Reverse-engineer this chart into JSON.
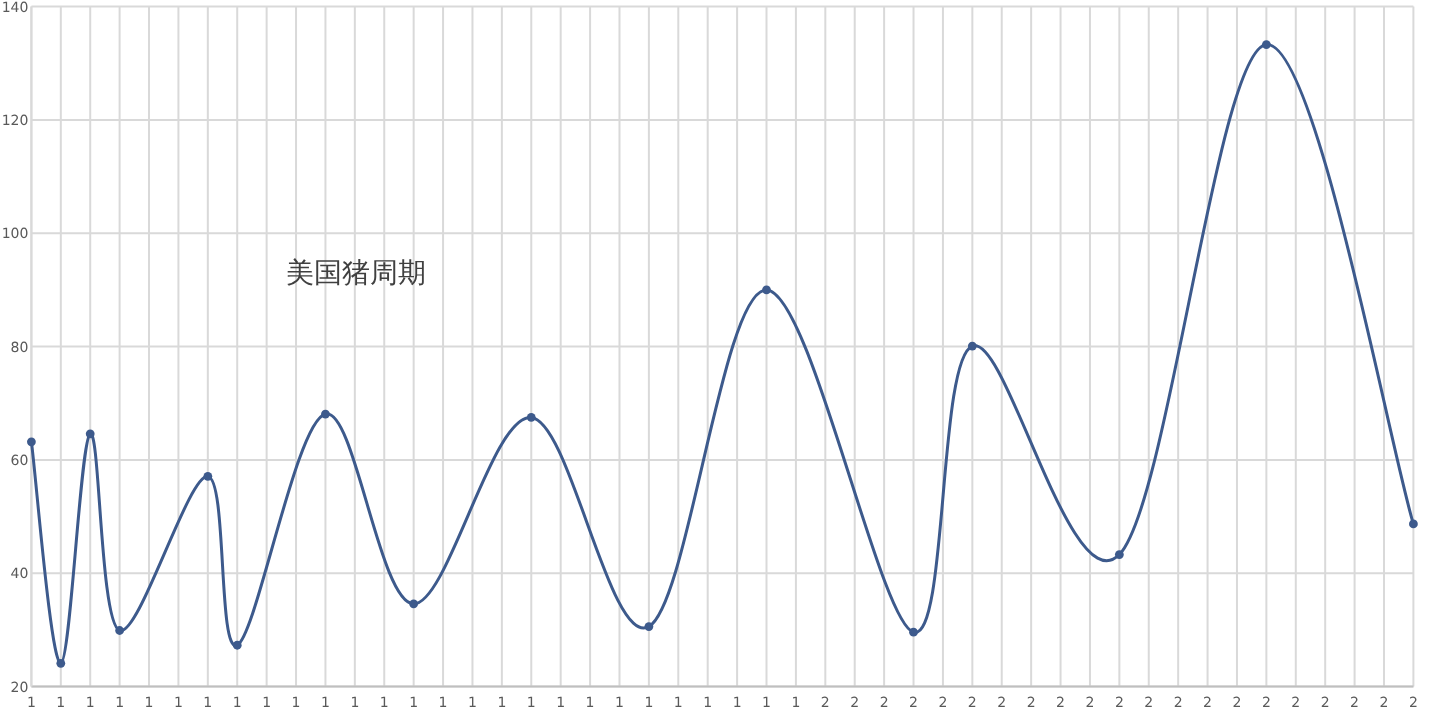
{
  "chart_data": {
    "type": "line",
    "title": "美国猪周期",
    "marker": "circle",
    "line_style": "solid",
    "grid": true,
    "categories": [
      "1",
      "1",
      "1",
      "1",
      "1",
      "1",
      "1",
      "1",
      "1",
      "1",
      "1",
      "1",
      "1",
      "1",
      "1",
      "1",
      "1",
      "1",
      "1",
      "1",
      "1",
      "1",
      "1",
      "1",
      "1",
      "1",
      "1",
      "2",
      "2",
      "2",
      "2",
      "2",
      "2",
      "2",
      "2",
      "2",
      "2",
      "2",
      "2",
      "2",
      "2",
      "2",
      "2",
      "2",
      "2",
      "2",
      "2",
      "2"
    ],
    "series": [
      {
        "color": "#3d5a8c",
        "values": [
          63.2,
          24.1,
          64.6,
          29.9,
          null,
          null,
          57.1,
          27.3,
          null,
          null,
          68.1,
          null,
          null,
          34.6,
          null,
          null,
          null,
          67.5,
          null,
          null,
          null,
          30.6,
          null,
          null,
          null,
          90.0,
          null,
          null,
          null,
          null,
          29.6,
          null,
          80.1,
          null,
          null,
          null,
          null,
          43.3,
          null,
          null,
          null,
          null,
          133.3,
          null,
          null,
          null,
          null,
          48.7
        ]
      }
    ],
    "ylim": [
      20,
      140
    ],
    "yticks": [
      20,
      40,
      60,
      80,
      100,
      120,
      140
    ]
  }
}
